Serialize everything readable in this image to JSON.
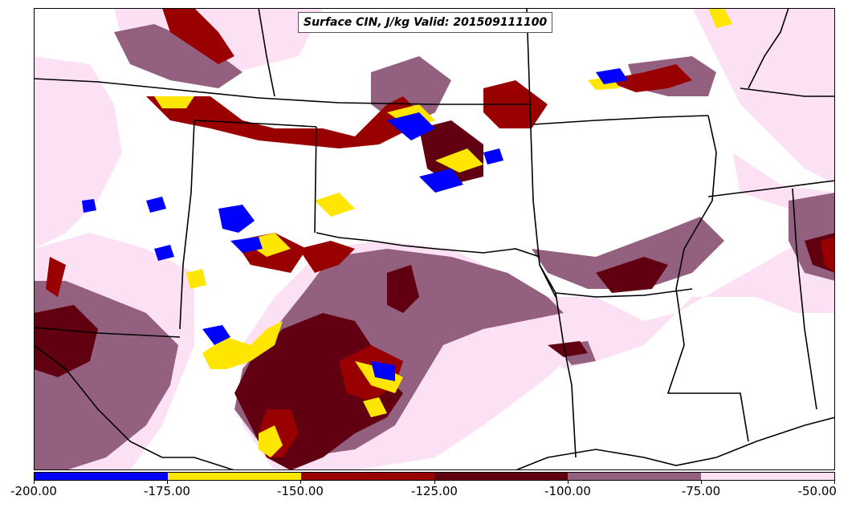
{
  "title": "Surface CIN, J/kg Valid: 201509111100",
  "colorbar": {
    "ticks": [
      "-200.00",
      "-175.00",
      "-150.00",
      "-125.00",
      "-100.00",
      "-75.00",
      "-50.00"
    ],
    "colors": [
      "#0000ff",
      "#ffe600",
      "#990000",
      "#600010",
      "#946080",
      "#fbe1f3"
    ]
  },
  "palette": {
    "blue": "#0000ff",
    "yellow": "#ffe600",
    "red": "#990000",
    "darkred": "#600010",
    "mauve": "#946080",
    "pink": "#fbe1f3",
    "border": "#000000"
  }
}
